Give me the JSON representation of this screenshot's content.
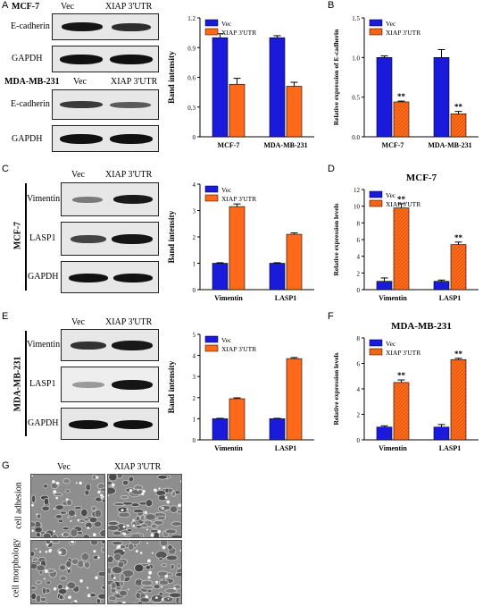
{
  "panel_labels": {
    "a": "A",
    "b": "B",
    "c": "C",
    "d": "D",
    "e": "E",
    "f": "F",
    "g": "G"
  },
  "blot_a": {
    "cell1": "MCF-7",
    "vec": "Vec",
    "xiap": "XIAP 3'UTR",
    "row1": "E-cadherin",
    "row2": "GAPDH",
    "cell2": "MDA-MB-231",
    "vec2": "Vec",
    "xiap2": "XIAP 3'UTR",
    "row3": "E-cadherin",
    "row4": "GAPDH"
  },
  "blot_c": {
    "vec": "Vec",
    "xiap": "XIAP 3'UTR",
    "side": "MCF-7",
    "row1": "Vimentin",
    "row2": "LASP1",
    "row3": "GAPDH"
  },
  "blot_e": {
    "vec": "Vec",
    "xiap": "XIAP 3'UTR",
    "side": "MDA-MB-231",
    "row1": "Vimentin",
    "row2": "LASP1",
    "row3": "GAPDH"
  },
  "panel_g": {
    "vec": "Vec",
    "xiap": "XIAP 3'UTR",
    "row1": "cell adhesion",
    "row2": "cell morphology"
  },
  "colors": {
    "vec": "#1a1adb",
    "xiap": "#ff6a1a"
  },
  "chart_data": [
    {
      "id": "chartA",
      "type": "bar",
      "categories": [
        "MCF-7",
        "MDA-MB-231"
      ],
      "series": [
        {
          "name": "Vec",
          "values": [
            1.0,
            1.0
          ],
          "err": [
            0.04,
            0.02
          ]
        },
        {
          "name": "XIAP 3'UTR",
          "values": [
            0.53,
            0.51
          ],
          "err": [
            0.06,
            0.04
          ]
        }
      ],
      "ylabel": "Band intensity",
      "ylim": [
        0,
        1.2
      ],
      "yticks": [
        "0",
        "0.3",
        "0.6",
        "0.9",
        "1.2"
      ],
      "ytickv": [
        0,
        0.3,
        0.6,
        0.9,
        1.2
      ],
      "stars": [
        "",
        ""
      ],
      "legend": "top-left"
    },
    {
      "id": "chartB",
      "type": "bar",
      "categories": [
        "MCF-7",
        "MDA-MB-231"
      ],
      "series": [
        {
          "name": "Vec",
          "values": [
            1.0,
            1.0
          ],
          "err": [
            0.02,
            0.1
          ]
        },
        {
          "name": "XIAP 3'UTR",
          "values": [
            0.44,
            0.29
          ],
          "err": [
            0.01,
            0.03
          ]
        }
      ],
      "ylabel": "Relative expression of E-cadherin",
      "ylim": [
        0,
        1.5
      ],
      "yticks": [
        "0.0",
        "0.5",
        "1.0",
        "1.5"
      ],
      "ytickv": [
        0,
        0.5,
        1.0,
        1.5
      ],
      "stars": [
        "**",
        "**"
      ],
      "legend": "top-left"
    },
    {
      "id": "chartC",
      "type": "bar",
      "categories": [
        "Vimentin",
        "LASP1"
      ],
      "series": [
        {
          "name": "Vec",
          "values": [
            1.0,
            1.0
          ],
          "err": [
            0.02,
            0.02
          ]
        },
        {
          "name": "XIAP 3'UTR",
          "values": [
            3.15,
            2.1
          ],
          "err": [
            0.1,
            0.05
          ]
        }
      ],
      "ylabel": "Band intensity",
      "ylim": [
        0,
        4
      ],
      "yticks": [
        "0",
        "1",
        "2",
        "3",
        "4"
      ],
      "ytickv": [
        0,
        1,
        2,
        3,
        4
      ],
      "stars": [
        "",
        ""
      ],
      "legend": "top-left"
    },
    {
      "id": "chartD",
      "type": "bar",
      "title": "MCF-7",
      "categories": [
        "Vimentin",
        "LASP1"
      ],
      "series": [
        {
          "name": "Vec",
          "values": [
            1.0,
            1.0
          ],
          "err": [
            0.4,
            0.15
          ]
        },
        {
          "name": "XIAP 3'UTR",
          "values": [
            9.8,
            5.4
          ],
          "err": [
            0.5,
            0.3
          ]
        }
      ],
      "ylabel": "Relative expression levels",
      "ylim": [
        0,
        12
      ],
      "yticks": [
        "0",
        "2",
        "4",
        "6",
        "8",
        "10",
        "12"
      ],
      "ytickv": [
        0,
        2,
        4,
        6,
        8,
        10,
        12
      ],
      "stars": [
        "**",
        "**"
      ],
      "legend": "top-left"
    },
    {
      "id": "chartE",
      "type": "bar",
      "categories": [
        "Vimentin",
        "LASP1"
      ],
      "series": [
        {
          "name": "Vec",
          "values": [
            1.0,
            1.0
          ],
          "err": [
            0.02,
            0.02
          ]
        },
        {
          "name": "XIAP 3'UTR",
          "values": [
            1.95,
            3.85
          ],
          "err": [
            0.04,
            0.05
          ]
        }
      ],
      "ylabel": "Band intensity",
      "ylim": [
        0,
        5
      ],
      "yticks": [
        "0",
        "1",
        "2",
        "3",
        "4",
        "5"
      ],
      "ytickv": [
        0,
        1,
        2,
        3,
        4,
        5
      ],
      "stars": [
        "",
        ""
      ],
      "legend": "top-left"
    },
    {
      "id": "chartF",
      "type": "bar",
      "title": "MDA-MB-231",
      "categories": [
        "Vimentin",
        "LASP1"
      ],
      "series": [
        {
          "name": "Vec",
          "values": [
            1.0,
            1.0
          ],
          "err": [
            0.1,
            0.2
          ]
        },
        {
          "name": "XIAP 3'UTR",
          "values": [
            4.5,
            6.3
          ],
          "err": [
            0.2,
            0.1
          ]
        }
      ],
      "ylabel": "Relative expression levels",
      "ylim": [
        0,
        8
      ],
      "yticks": [
        "0",
        "2",
        "4",
        "6",
        "8"
      ],
      "ytickv": [
        0,
        2,
        4,
        6,
        8
      ],
      "stars": [
        "**",
        "**"
      ],
      "legend": "top-left"
    }
  ]
}
